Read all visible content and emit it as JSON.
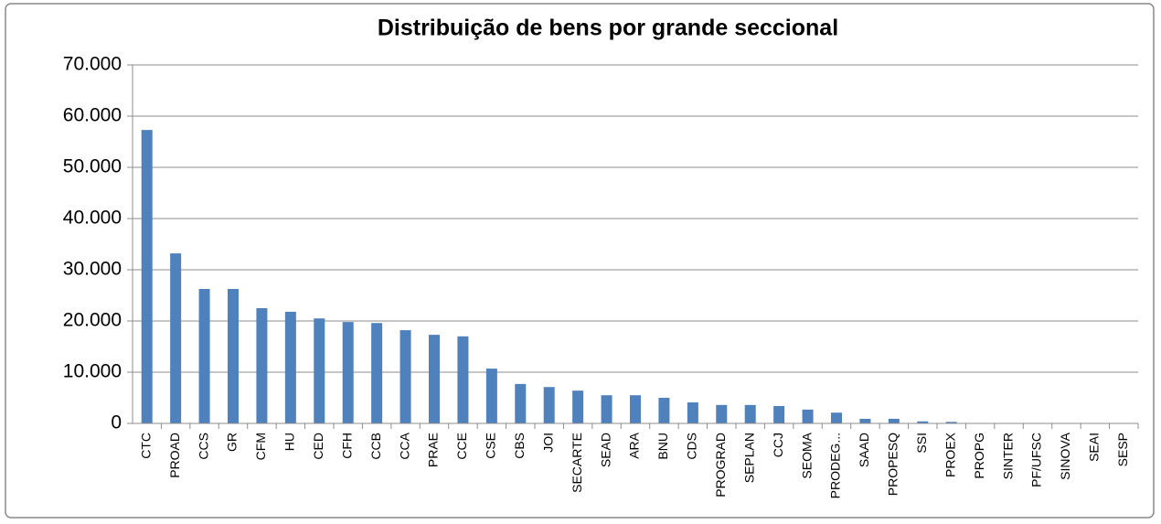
{
  "chart_data": {
    "type": "bar",
    "title": "Distribuição de bens por grande seccional",
    "categories": [
      "CTC",
      "PROAD",
      "CCS",
      "GR",
      "CFM",
      "HU",
      "CED",
      "CFH",
      "CCB",
      "CCA",
      "PRAE",
      "CCE",
      "CSE",
      "CBS",
      "JOI",
      "SECARTE",
      "SEAD",
      "ARA",
      "BNU",
      "CDS",
      "PROGRAD",
      "SEPLAN",
      "CCJ",
      "SEOMA",
      "PRODEG...",
      "SAAD",
      "PROPESQ",
      "SSI",
      "PROEX",
      "PROPG",
      "SINTER",
      "PF/UFSC",
      "SINOVA",
      "SEAI",
      "SESP"
    ],
    "values": [
      57300,
      33200,
      26250,
      26250,
      22500,
      21800,
      20500,
      19800,
      19600,
      18200,
      17300,
      17000,
      10700,
      7700,
      7100,
      6400,
      5500,
      5500,
      5000,
      4100,
      3600,
      3600,
      3400,
      2700,
      2100,
      900,
      900,
      400,
      300,
      50,
      30,
      20,
      10,
      10,
      10
    ],
    "color": "#4f81bd",
    "ylim": [
      0,
      70000
    ],
    "yticks": [
      0,
      {
        "value": 10000,
        "label": "10.000"
      },
      {
        "value": 20000,
        "label": "20.000"
      },
      {
        "value": 30000,
        "label": "30.000"
      },
      {
        "value": 40000,
        "label": "40.000"
      },
      {
        "value": 50000,
        "label": "50.000"
      },
      {
        "value": 60000,
        "label": "60.000"
      },
      {
        "value": 70000,
        "label": "70.000"
      }
    ],
    "grid": true
  }
}
